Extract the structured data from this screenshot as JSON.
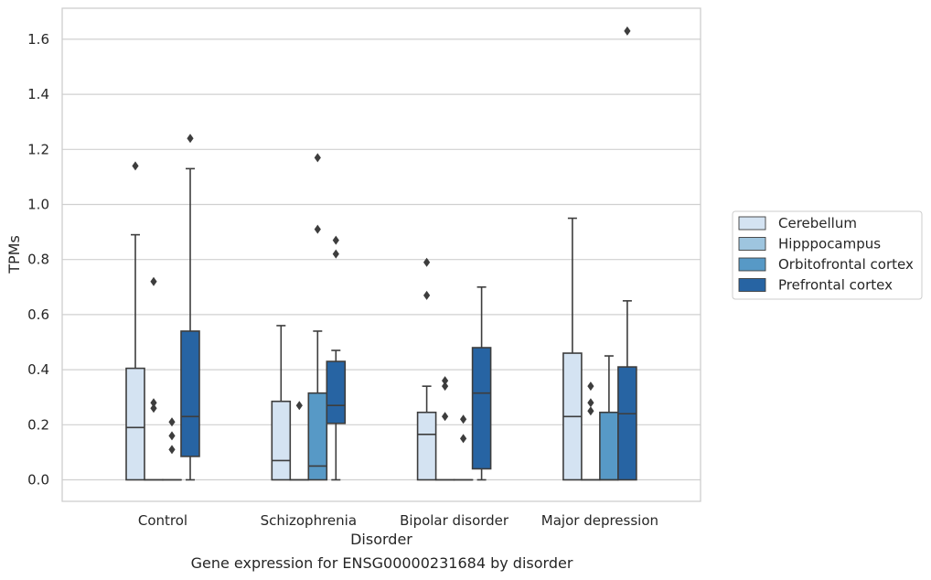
{
  "caption": "Gene expression for ENSG00000231684 by disorder",
  "chart_data": {
    "type": "box",
    "xlabel": "Disorder",
    "ylabel": "TPMs",
    "ylim": [
      -0.08,
      1.72
    ],
    "yticks": [
      0.0,
      0.2,
      0.4,
      0.6,
      0.8,
      1.0,
      1.2,
      1.4,
      1.6
    ],
    "ytick_labels": [
      "0.0",
      "0.2",
      "0.4",
      "0.6",
      "0.8",
      "1.0",
      "1.2",
      "1.4",
      "1.6"
    ],
    "grid": "horizontal",
    "legend_position": "right",
    "categories": [
      "Control",
      "Schizophrenia",
      "Bipolar disorder",
      "Major depression"
    ],
    "series": [
      {
        "name": "Cerebellum",
        "color": "#d4e3f2",
        "boxes": [
          {
            "whislo": 0.0,
            "q1": 0.0,
            "med": 0.19,
            "q3": 0.405,
            "whishi": 0.89,
            "fliers": [
              1.14
            ]
          },
          {
            "whislo": 0.0,
            "q1": 0.0,
            "med": 0.07,
            "q3": 0.285,
            "whishi": 0.56,
            "fliers": []
          },
          {
            "whislo": 0.0,
            "q1": 0.0,
            "med": 0.165,
            "q3": 0.245,
            "whishi": 0.34,
            "fliers": [
              0.67,
              0.79
            ]
          },
          {
            "whislo": 0.0,
            "q1": 0.0,
            "med": 0.23,
            "q3": 0.46,
            "whishi": 0.95,
            "fliers": []
          }
        ]
      },
      {
        "name": "Hipppocampus",
        "color": "#9ec5df",
        "boxes": [
          {
            "whislo": 0.0,
            "q1": 0.0,
            "med": 0.0,
            "q3": 0.0,
            "whishi": 0.0,
            "fliers": [
              0.26,
              0.28,
              0.72
            ]
          },
          {
            "whislo": 0.0,
            "q1": 0.0,
            "med": 0.0,
            "q3": 0.0,
            "whishi": 0.0,
            "fliers": [
              0.27
            ]
          },
          {
            "whislo": 0.0,
            "q1": 0.0,
            "med": 0.0,
            "q3": 0.0,
            "whishi": 0.0,
            "fliers": [
              0.23,
              0.34,
              0.36
            ]
          },
          {
            "whislo": 0.0,
            "q1": 0.0,
            "med": 0.0,
            "q3": 0.0,
            "whishi": 0.0,
            "fliers": [
              0.25,
              0.28,
              0.34
            ]
          }
        ]
      },
      {
        "name": "Orbitofrontal cortex",
        "color": "#5799c6",
        "boxes": [
          {
            "whislo": 0.0,
            "q1": 0.0,
            "med": 0.0,
            "q3": 0.0,
            "whishi": 0.0,
            "fliers": [
              0.11,
              0.16,
              0.21
            ]
          },
          {
            "whislo": 0.0,
            "q1": 0.0,
            "med": 0.05,
            "q3": 0.315,
            "whishi": 0.54,
            "fliers": [
              0.91,
              1.17
            ]
          },
          {
            "whislo": 0.0,
            "q1": 0.0,
            "med": 0.0,
            "q3": 0.0,
            "whishi": 0.0,
            "fliers": [
              0.15,
              0.22
            ]
          },
          {
            "whislo": 0.0,
            "q1": 0.0,
            "med": 0.0,
            "q3": 0.245,
            "whishi": 0.45,
            "fliers": []
          }
        ]
      },
      {
        "name": "Prefrontal cortex",
        "color": "#2764a3",
        "boxes": [
          {
            "whislo": 0.0,
            "q1": 0.085,
            "med": 0.23,
            "q3": 0.54,
            "whishi": 1.13,
            "fliers": [
              1.24
            ]
          },
          {
            "whislo": 0.0,
            "q1": 0.205,
            "med": 0.27,
            "q3": 0.43,
            "whishi": 0.47,
            "fliers": [
              0.82,
              0.87
            ]
          },
          {
            "whislo": 0.0,
            "q1": 0.04,
            "med": 0.315,
            "q3": 0.48,
            "whishi": 0.7,
            "fliers": []
          },
          {
            "whislo": 0.0,
            "q1": 0.0,
            "med": 0.24,
            "q3": 0.41,
            "whishi": 0.65,
            "fliers": [
              1.63
            ]
          }
        ]
      }
    ]
  }
}
